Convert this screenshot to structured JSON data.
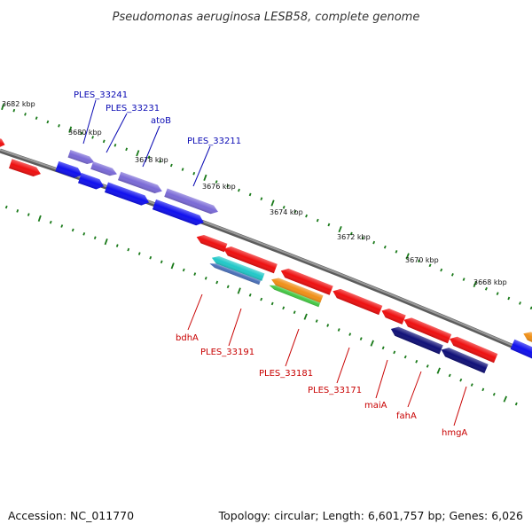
{
  "title": "Pseudomonas aeruginosa LESB58, complete genome",
  "footer": {
    "accession": "Accession: NC_011770",
    "topology": "Topology: circular; Length: 6,601,757 bp; Genes: 6,026"
  },
  "kbp_labels": [
    "3682 kbp",
    "3680 kbp",
    "3678 kbp",
    "3676 kbp",
    "3674 kbp",
    "3672 kbp",
    "3670 kbp",
    "3668 kbp"
  ],
  "forward_genes": [
    "PLES_33241",
    "PLES_33231",
    "atoB",
    "PLES_33211"
  ],
  "reverse_genes": [
    "bdhA",
    "PLES_33191",
    "PLES_33181",
    "PLES_33171",
    "maiA",
    "fahA",
    "hmgA"
  ],
  "colors": {
    "backbone": "#8a8a8a",
    "tick": "#1a7a1a",
    "forward_label": "#0a0ab4",
    "reverse_label": "#c80000",
    "blue": "#1010ee",
    "violet": "#7a6ad6",
    "red": "#ee1010",
    "cyan": "#22c8c8",
    "steel": "#4a70b8",
    "orange": "#f09018",
    "green": "#44c844",
    "navy": "#101078"
  }
}
